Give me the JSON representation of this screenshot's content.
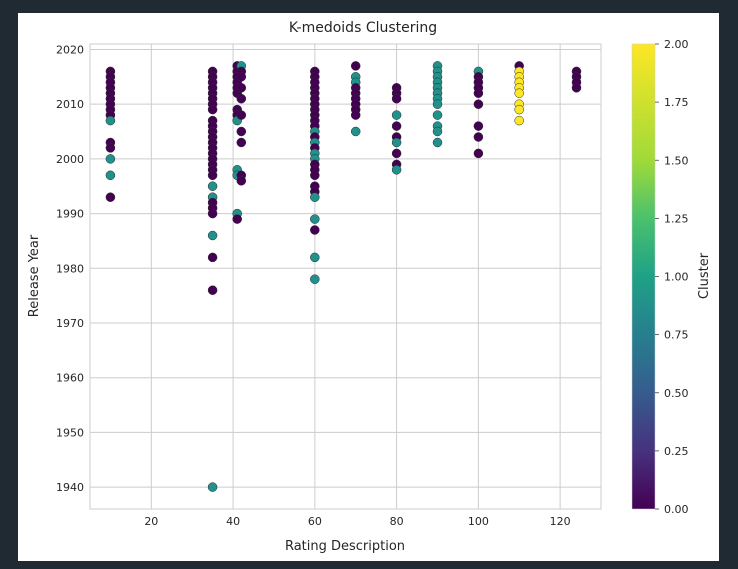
{
  "chart_data": {
    "type": "scatter",
    "title": "K-medoids Clustering",
    "xlabel": "Rating Description",
    "ylabel": "Release Year",
    "xlim": [
      5,
      130
    ],
    "ylim": [
      1936,
      2021
    ],
    "xticks": [
      20,
      40,
      60,
      80,
      100,
      120
    ],
    "yticks": [
      1940,
      1950,
      1960,
      1970,
      1980,
      1990,
      2000,
      2010,
      2020
    ],
    "grid": true,
    "colorbar": {
      "label": "Cluster",
      "range": [
        0.0,
        2.0
      ],
      "ticks": [
        "0.00",
        "0.25",
        "0.50",
        "0.75",
        "1.00",
        "1.25",
        "1.50",
        "1.75",
        "2.00"
      ],
      "colormap": "viridis"
    },
    "clusters": [
      {
        "value": 0,
        "color": "#440154"
      },
      {
        "value": 1,
        "color": "#21918c"
      },
      {
        "value": 2,
        "color": "#fde725"
      }
    ],
    "points": [
      [
        10,
        2016,
        0
      ],
      [
        10,
        2015,
        0
      ],
      [
        10,
        2014,
        0
      ],
      [
        10,
        2013,
        0
      ],
      [
        10,
        2012,
        0
      ],
      [
        10,
        2011,
        0
      ],
      [
        10,
        2010,
        0
      ],
      [
        10,
        2009,
        0
      ],
      [
        10,
        2008,
        0
      ],
      [
        10,
        2007,
        1
      ],
      [
        10,
        2003,
        0
      ],
      [
        10,
        2002,
        0
      ],
      [
        10,
        2000,
        1
      ],
      [
        10,
        1997,
        1
      ],
      [
        10,
        1993,
        0
      ],
      [
        35,
        2016,
        0
      ],
      [
        35,
        2015,
        0
      ],
      [
        35,
        2014,
        0
      ],
      [
        35,
        2013,
        0
      ],
      [
        35,
        2012,
        0
      ],
      [
        35,
        2011,
        0
      ],
      [
        35,
        2010,
        0
      ],
      [
        35,
        2009,
        0
      ],
      [
        35,
        2007,
        0
      ],
      [
        35,
        2006,
        0
      ],
      [
        35,
        2005,
        0
      ],
      [
        35,
        2004,
        0
      ],
      [
        35,
        2003,
        0
      ],
      [
        35,
        2002,
        0
      ],
      [
        35,
        2001,
        0
      ],
      [
        35,
        2000,
        0
      ],
      [
        35,
        1999,
        0
      ],
      [
        35,
        1998,
        0
      ],
      [
        35,
        1997,
        0
      ],
      [
        35,
        1995,
        1
      ],
      [
        35,
        1993,
        1
      ],
      [
        35,
        1992,
        0
      ],
      [
        35,
        1991,
        0
      ],
      [
        35,
        1990,
        0
      ],
      [
        35,
        1986,
        1
      ],
      [
        35,
        1982,
        0
      ],
      [
        35,
        1976,
        0
      ],
      [
        35,
        1940,
        1
      ],
      [
        41,
        2017,
        0
      ],
      [
        41,
        2016,
        0
      ],
      [
        41,
        2015,
        0
      ],
      [
        41,
        2014,
        0
      ],
      [
        41,
        2013,
        0
      ],
      [
        41,
        2012,
        0
      ],
      [
        41,
        2009,
        0
      ],
      [
        41,
        2008,
        0
      ],
      [
        41,
        2007,
        1
      ],
      [
        41,
        1998,
        1
      ],
      [
        41,
        1997,
        1
      ],
      [
        41,
        1990,
        1
      ],
      [
        41,
        1989,
        0
      ],
      [
        42,
        2017,
        1
      ],
      [
        42,
        2016,
        0
      ],
      [
        42,
        2015,
        0
      ],
      [
        42,
        2013,
        0
      ],
      [
        42,
        2011,
        0
      ],
      [
        42,
        2008,
        0
      ],
      [
        42,
        2005,
        0
      ],
      [
        42,
        2003,
        0
      ],
      [
        42,
        1997,
        0
      ],
      [
        42,
        1996,
        0
      ],
      [
        60,
        2016,
        0
      ],
      [
        60,
        2015,
        0
      ],
      [
        60,
        2014,
        0
      ],
      [
        60,
        2013,
        0
      ],
      [
        60,
        2012,
        0
      ],
      [
        60,
        2011,
        0
      ],
      [
        60,
        2010,
        0
      ],
      [
        60,
        2009,
        0
      ],
      [
        60,
        2008,
        0
      ],
      [
        60,
        2007,
        0
      ],
      [
        60,
        2006,
        0
      ],
      [
        60,
        2005,
        1
      ],
      [
        60,
        2004,
        0
      ],
      [
        60,
        2003,
        1
      ],
      [
        60,
        2002,
        0
      ],
      [
        60,
        2001,
        1
      ],
      [
        60,
        2000,
        1
      ],
      [
        60,
        1999,
        0
      ],
      [
        60,
        1998,
        0
      ],
      [
        60,
        1997,
        0
      ],
      [
        60,
        1995,
        0
      ],
      [
        60,
        1994,
        0
      ],
      [
        60,
        1993,
        1
      ],
      [
        60,
        1989,
        1
      ],
      [
        60,
        1987,
        0
      ],
      [
        60,
        1982,
        1
      ],
      [
        60,
        1978,
        1
      ],
      [
        70,
        2017,
        0
      ],
      [
        70,
        2015,
        1
      ],
      [
        70,
        2014,
        1
      ],
      [
        70,
        2013,
        0
      ],
      [
        70,
        2012,
        0
      ],
      [
        70,
        2011,
        0
      ],
      [
        70,
        2010,
        0
      ],
      [
        70,
        2009,
        0
      ],
      [
        70,
        2008,
        0
      ],
      [
        70,
        2005,
        1
      ],
      [
        80,
        2013,
        0
      ],
      [
        80,
        2012,
        0
      ],
      [
        80,
        2011,
        0
      ],
      [
        80,
        2008,
        1
      ],
      [
        80,
        2006,
        0
      ],
      [
        80,
        2004,
        0
      ],
      [
        80,
        2003,
        1
      ],
      [
        80,
        2001,
        0
      ],
      [
        80,
        1999,
        0
      ],
      [
        80,
        1998,
        1
      ],
      [
        90,
        2017,
        1
      ],
      [
        90,
        2016,
        1
      ],
      [
        90,
        2015,
        1
      ],
      [
        90,
        2014,
        1
      ],
      [
        90,
        2013,
        1
      ],
      [
        90,
        2012,
        1
      ],
      [
        90,
        2011,
        1
      ],
      [
        90,
        2010,
        1
      ],
      [
        90,
        2008,
        1
      ],
      [
        90,
        2006,
        1
      ],
      [
        90,
        2005,
        1
      ],
      [
        90,
        2003,
        1
      ],
      [
        100,
        2016,
        1
      ],
      [
        100,
        2015,
        0
      ],
      [
        100,
        2014,
        0
      ],
      [
        100,
        2013,
        0
      ],
      [
        100,
        2012,
        0
      ],
      [
        100,
        2010,
        0
      ],
      [
        100,
        2006,
        0
      ],
      [
        100,
        2004,
        0
      ],
      [
        100,
        2001,
        0
      ],
      [
        110,
        2017,
        0
      ],
      [
        110,
        2016,
        2
      ],
      [
        110,
        2015,
        2
      ],
      [
        110,
        2014,
        2
      ],
      [
        110,
        2013,
        2
      ],
      [
        110,
        2012,
        2
      ],
      [
        110,
        2010,
        2
      ],
      [
        110,
        2009,
        2
      ],
      [
        110,
        2007,
        2
      ],
      [
        124,
        2016,
        0
      ],
      [
        124,
        2015,
        0
      ],
      [
        124,
        2014,
        0
      ],
      [
        124,
        2013,
        0
      ]
    ]
  }
}
